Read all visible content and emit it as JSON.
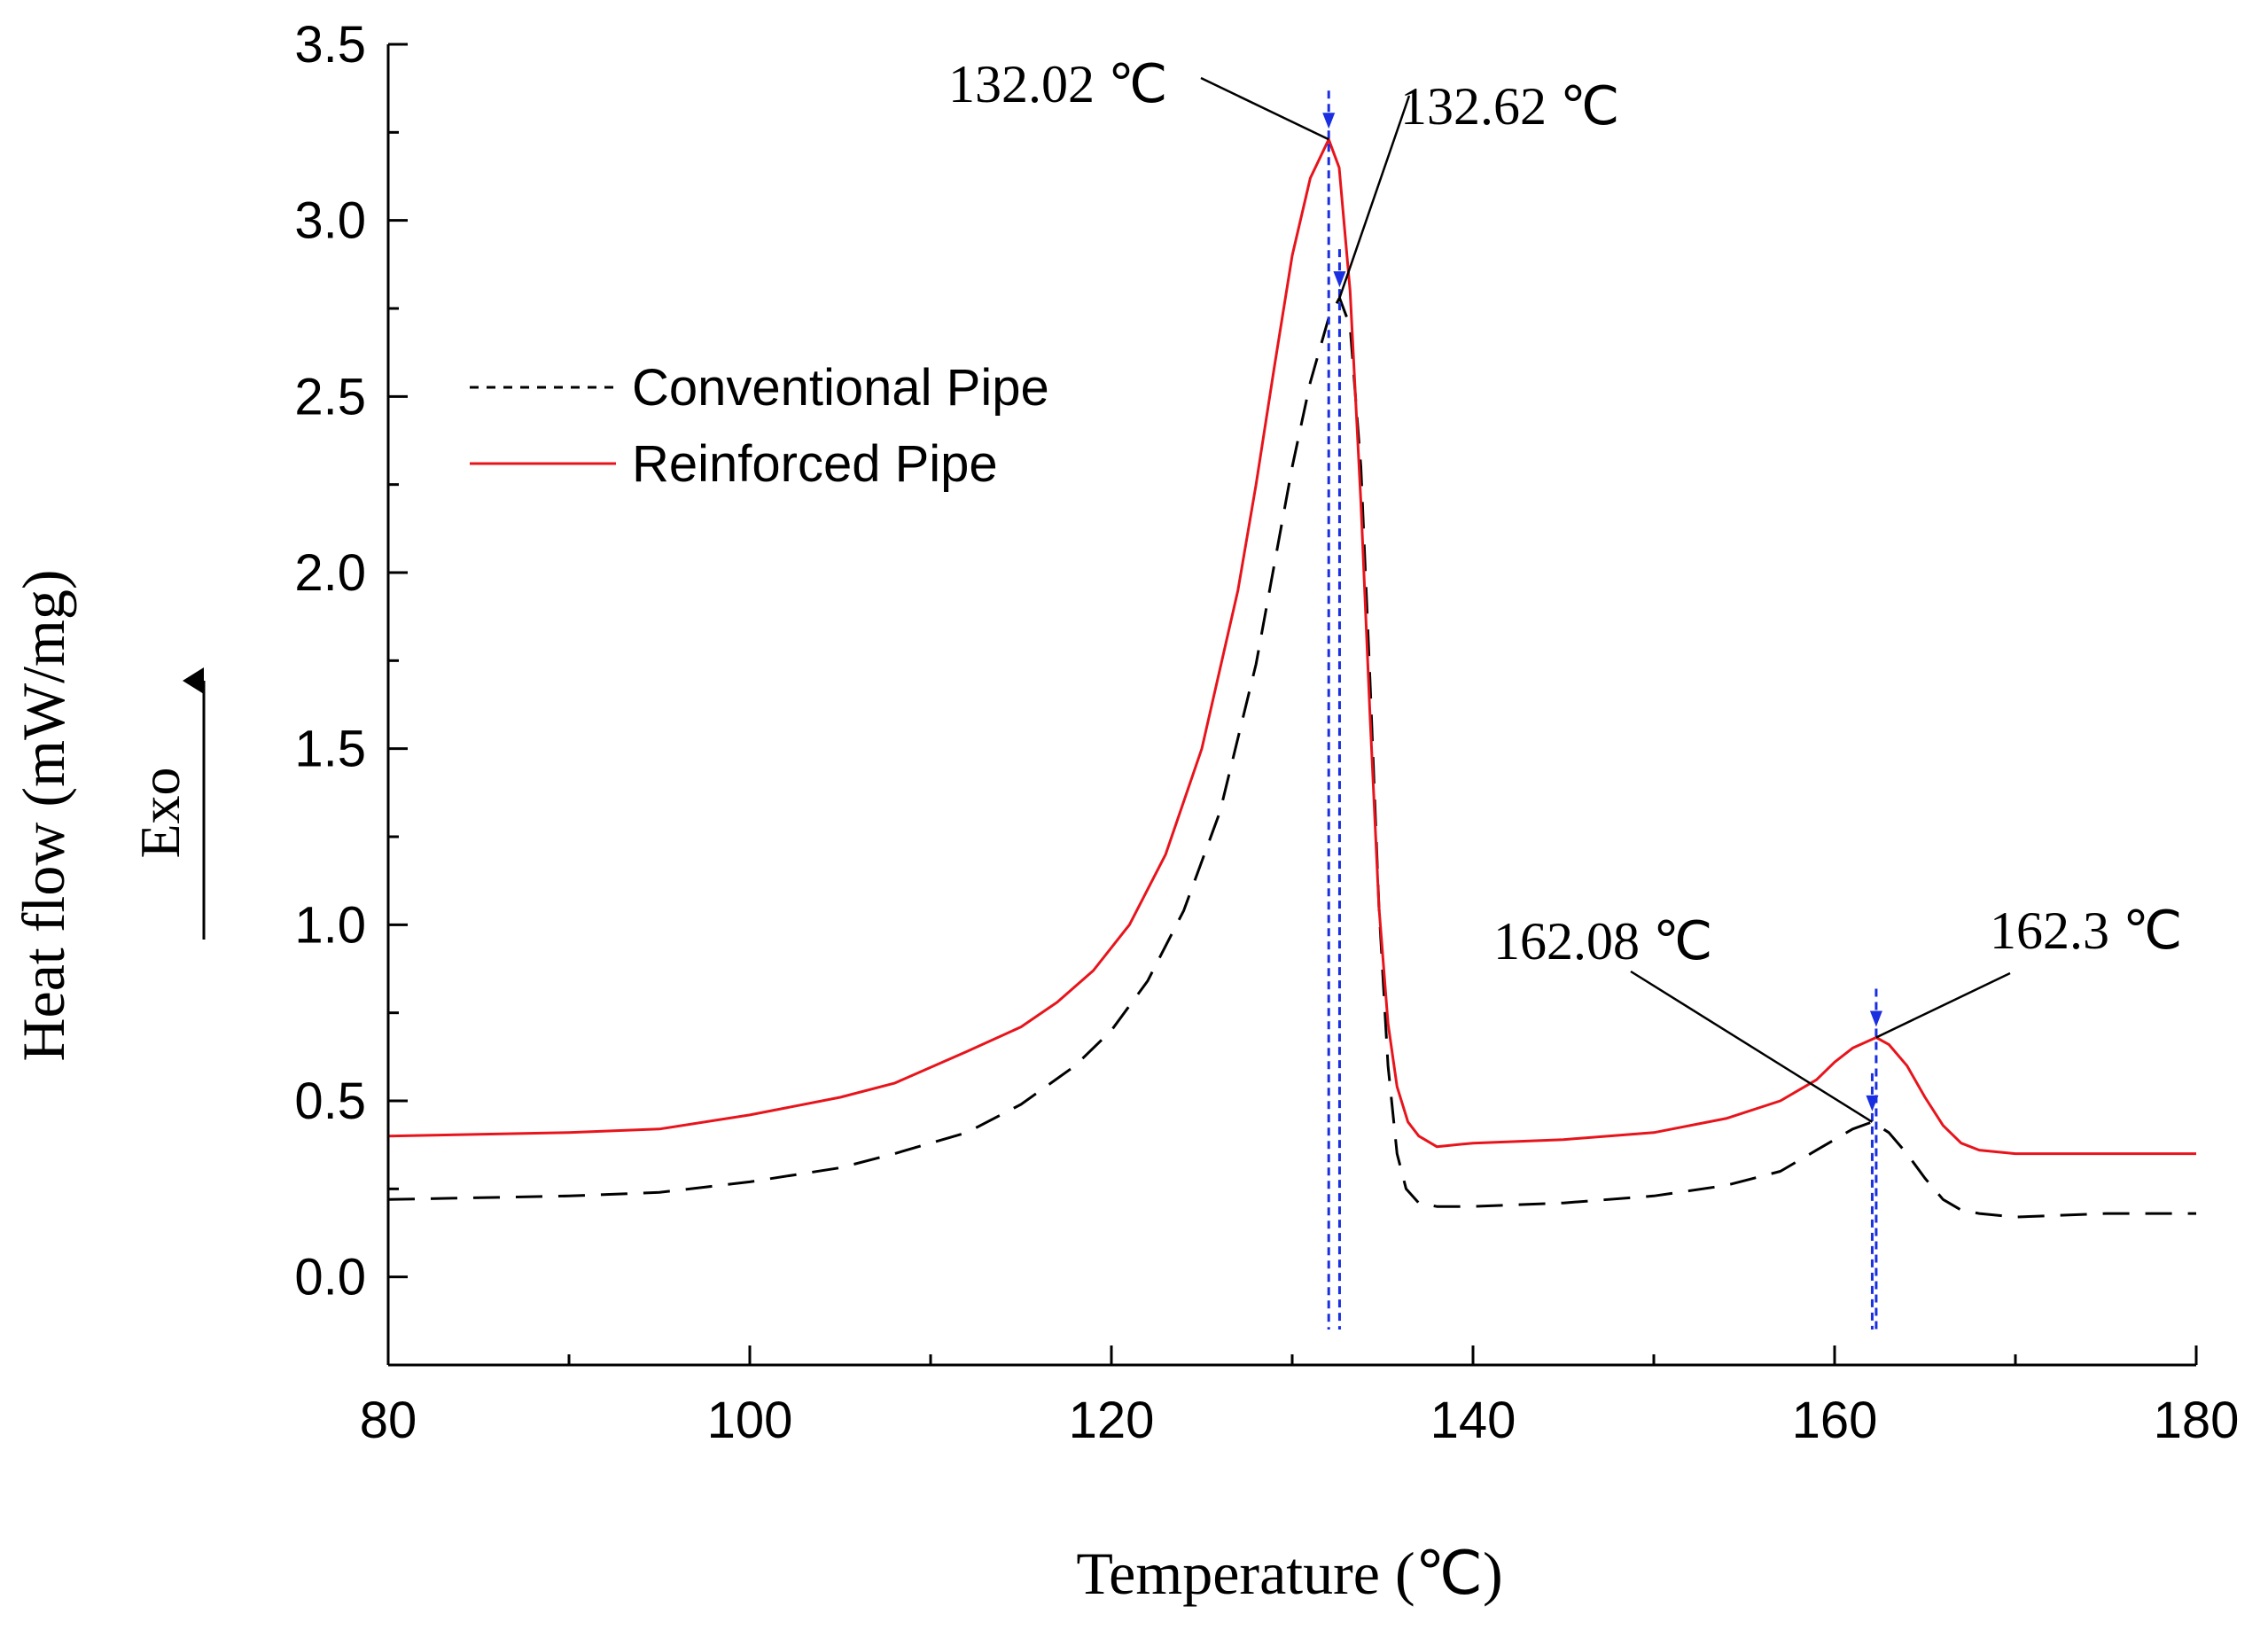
{
  "chart_data": {
    "type": "line",
    "xlabel": "Temperature (℃)",
    "ylabel": "Heat flow (mW/mg)",
    "exo_label": "Exo",
    "xlim": [
      80,
      180
    ],
    "ylim": [
      -0.25,
      3.5
    ],
    "xticks": [
      "80",
      "100",
      "120",
      "140",
      "160",
      "180"
    ],
    "yticks": [
      "0.0",
      "0.5",
      "1.0",
      "1.5",
      "2.0",
      "2.5",
      "3.0",
      "3.5"
    ],
    "legend": [
      "Conventional Pipe",
      "Reinforced Pipe"
    ],
    "colors": {
      "conventional": "#000000",
      "reinforced": "#e8141c",
      "marker": "#1a2fe0"
    },
    "series": [
      {
        "name": "Conventional Pipe",
        "style": "dashed",
        "x": [
          80,
          90,
          95,
          100,
          105,
          108,
          112,
          115,
          118,
          120,
          122,
          124,
          126,
          128,
          129,
          130,
          131,
          132.0,
          132.62,
          133.2,
          133.8,
          134.3,
          134.8,
          135.3,
          135.8,
          136.3,
          137,
          138,
          140,
          145,
          150,
          154,
          157,
          159,
          160,
          161,
          162.08,
          163,
          164,
          165,
          166,
          167,
          168,
          170,
          175,
          180
        ],
        "y": [
          0.22,
          0.23,
          0.24,
          0.27,
          0.31,
          0.35,
          0.41,
          0.49,
          0.6,
          0.7,
          0.84,
          1.04,
          1.32,
          1.74,
          2.02,
          2.3,
          2.54,
          2.72,
          2.78,
          2.7,
          2.3,
          1.7,
          1.05,
          0.6,
          0.35,
          0.25,
          0.21,
          0.2,
          0.2,
          0.21,
          0.23,
          0.26,
          0.3,
          0.36,
          0.39,
          0.42,
          0.44,
          0.41,
          0.35,
          0.28,
          0.22,
          0.19,
          0.18,
          0.17,
          0.18,
          0.18
        ]
      },
      {
        "name": "Reinforced Pipe",
        "style": "solid",
        "x": [
          80,
          90,
          95,
          100,
          105,
          108,
          112,
          115,
          117,
          119,
          121,
          123,
          125,
          127,
          128,
          129,
          130,
          131,
          132.02,
          132.6,
          133.2,
          133.8,
          134.3,
          134.8,
          135.3,
          135.8,
          136.4,
          137,
          138,
          140,
          145,
          150,
          154,
          157,
          159,
          160,
          161,
          162.3,
          163,
          164,
          165,
          166,
          167,
          168,
          170,
          175,
          180
        ],
        "y": [
          0.4,
          0.41,
          0.42,
          0.46,
          0.51,
          0.55,
          0.64,
          0.71,
          0.78,
          0.87,
          1.0,
          1.2,
          1.5,
          1.95,
          2.25,
          2.58,
          2.9,
          3.12,
          3.23,
          3.15,
          2.8,
          2.2,
          1.6,
          1.05,
          0.72,
          0.54,
          0.44,
          0.4,
          0.37,
          0.38,
          0.39,
          0.41,
          0.45,
          0.5,
          0.56,
          0.61,
          0.65,
          0.68,
          0.66,
          0.6,
          0.51,
          0.43,
          0.38,
          0.36,
          0.35,
          0.35,
          0.35
        ]
      }
    ],
    "annotations": [
      {
        "label": "132.02 ℃",
        "x": 132.02,
        "y": 3.23
      },
      {
        "label": "132.62 ℃",
        "x": 132.62,
        "y": 2.78
      },
      {
        "label": "162.08 ℃",
        "x": 162.08,
        "y": 0.44
      },
      {
        "label": "162.3 ℃",
        "x": 162.3,
        "y": 0.68
      }
    ]
  }
}
